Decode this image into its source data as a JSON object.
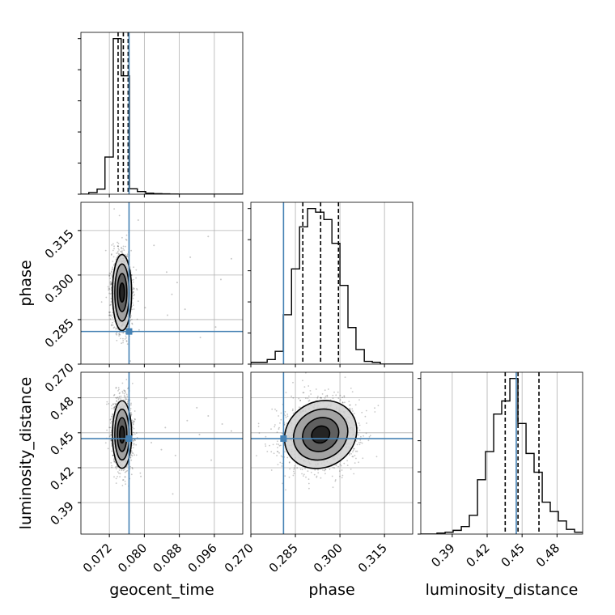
{
  "chart_data": {
    "type": "corner",
    "parameters": [
      "geocent_time",
      "phase",
      "luminosity_distance"
    ],
    "ranges": {
      "geocent_time": [
        0.0655,
        0.1025
      ],
      "phase": [
        0.27,
        0.3245
      ],
      "luminosity_distance": [
        0.363,
        0.502
      ]
    },
    "ticks": {
      "geocent_time": [
        "0.072",
        "0.080",
        "0.088",
        "0.096"
      ],
      "phase": [
        "0.270",
        "0.285",
        "0.300",
        "0.315"
      ],
      "luminosity_distance": [
        "0.39",
        "0.42",
        "0.45",
        "0.48"
      ]
    },
    "truths": {
      "geocent_time": 0.0765,
      "phase": 0.281,
      "luminosity_distance": 0.445
    },
    "quantiles": {
      "geocent_time": [
        0.074,
        0.0752,
        0.0763
      ],
      "phase": [
        0.2875,
        0.2935,
        0.2995
      ],
      "luminosity_distance": [
        0.4355,
        0.4465,
        0.4645
      ]
    },
    "histograms": {
      "geocent_time": {
        "edges": [
          0.0655,
          0.0673,
          0.0692,
          0.071,
          0.0729,
          0.0747,
          0.0766,
          0.0784,
          0.0803,
          0.0821,
          0.084,
          0.0858,
          0.0877,
          0.0895,
          0.0914,
          0.0932,
          0.0951,
          0.0969,
          0.0988,
          0.1006,
          0.1025
        ],
        "counts": [
          0,
          0.5,
          1.5,
          11,
          46,
          35,
          1.6,
          0.8,
          0.3,
          0.15,
          0.1,
          0.05,
          0,
          0,
          0,
          0,
          0,
          0,
          0,
          0
        ]
      },
      "phase": {
        "edges": [
          0.27,
          0.2727,
          0.2755,
          0.2782,
          0.2809,
          0.2837,
          0.2864,
          0.2891,
          0.2918,
          0.2946,
          0.2973,
          0.3,
          0.3027,
          0.3054,
          0.3082,
          0.3109,
          0.3136,
          0.3164,
          0.3191,
          0.3218,
          0.3245
        ],
        "counts": [
          0.1,
          0.1,
          0.25,
          0.7,
          2.7,
          5.2,
          7.5,
          8.5,
          8.3,
          7.9,
          6.6,
          4.3,
          2.0,
          0.8,
          0.15,
          0.1,
          0,
          0,
          0,
          0
        ]
      },
      "luminosity_distance": {
        "edges": [
          0.363,
          0.37,
          0.3769,
          0.3839,
          0.3908,
          0.3978,
          0.4047,
          0.4117,
          0.4186,
          0.4256,
          0.4325,
          0.4395,
          0.4464,
          0.4534,
          0.4603,
          0.4673,
          0.4742,
          0.4812,
          0.4881,
          0.4951,
          0.502
        ],
        "counts": [
          0,
          0,
          0.05,
          0.1,
          0.2,
          0.4,
          1.0,
          2.9,
          4.4,
          6.4,
          7.1,
          8.3,
          5.9,
          4.3,
          3.3,
          1.7,
          1.2,
          0.7,
          0.25,
          0.1
        ]
      }
    },
    "contours_2d": [
      {
        "x": "geocent_time",
        "y": "phase",
        "center": [
          0.0749,
          0.2941
        ],
        "sigma": [
          0.0011,
          0.0064
        ],
        "rotation_deg": 0,
        "scatter_outliers": [
          [
            0.0802,
            0.289
          ],
          [
            0.0851,
            0.301
          ],
          [
            0.0875,
            0.2975
          ],
          [
            0.0905,
            0.306
          ],
          [
            0.0928,
            0.279
          ],
          [
            0.0946,
            0.313
          ],
          [
            0.0853,
            0.2865
          ],
          [
            0.0975,
            0.2985
          ],
          [
            0.0999,
            0.3055
          ],
          [
            0.0822,
            0.31
          ],
          [
            0.0788,
            0.2815
          ],
          [
            0.0863,
            0.2935
          ],
          [
            0.0893,
            0.2885
          ],
          [
            0.0963,
            0.2825
          ],
          [
            0.0786,
            0.3185
          ]
        ]
      },
      {
        "x": "geocent_time",
        "y": "luminosity_distance",
        "center": [
          0.0749,
          0.4485
        ],
        "sigma": [
          0.0011,
          0.0145
        ],
        "rotation_deg": 0,
        "scatter_outliers": [
          [
            0.0816,
            0.4415
          ],
          [
            0.0848,
            0.4545
          ],
          [
            0.0871,
            0.4305
          ],
          [
            0.0898,
            0.4605
          ],
          [
            0.0926,
            0.4485
          ],
          [
            0.0953,
            0.4265
          ],
          [
            0.0978,
            0.4575
          ],
          [
            0.0804,
            0.4795
          ],
          [
            0.0865,
            0.3975
          ],
          [
            0.092,
            0.4715
          ],
          [
            0.0792,
            0.4125
          ],
          [
            0.0839,
            0.4355
          ],
          [
            0.0946,
            0.4645
          ],
          [
            0.0999,
            0.4515
          ]
        ]
      },
      {
        "x": "phase",
        "y": "luminosity_distance",
        "center": [
          0.2935,
          0.4485
        ],
        "sigma": [
          0.0063,
          0.014
        ],
        "rotation_deg": -32,
        "scatter_outliers": []
      }
    ],
    "contour_levels": [
      0.118,
      0.393,
      0.675,
      0.865
    ],
    "truth_color": "#4682b4",
    "line_color": "#000000"
  }
}
